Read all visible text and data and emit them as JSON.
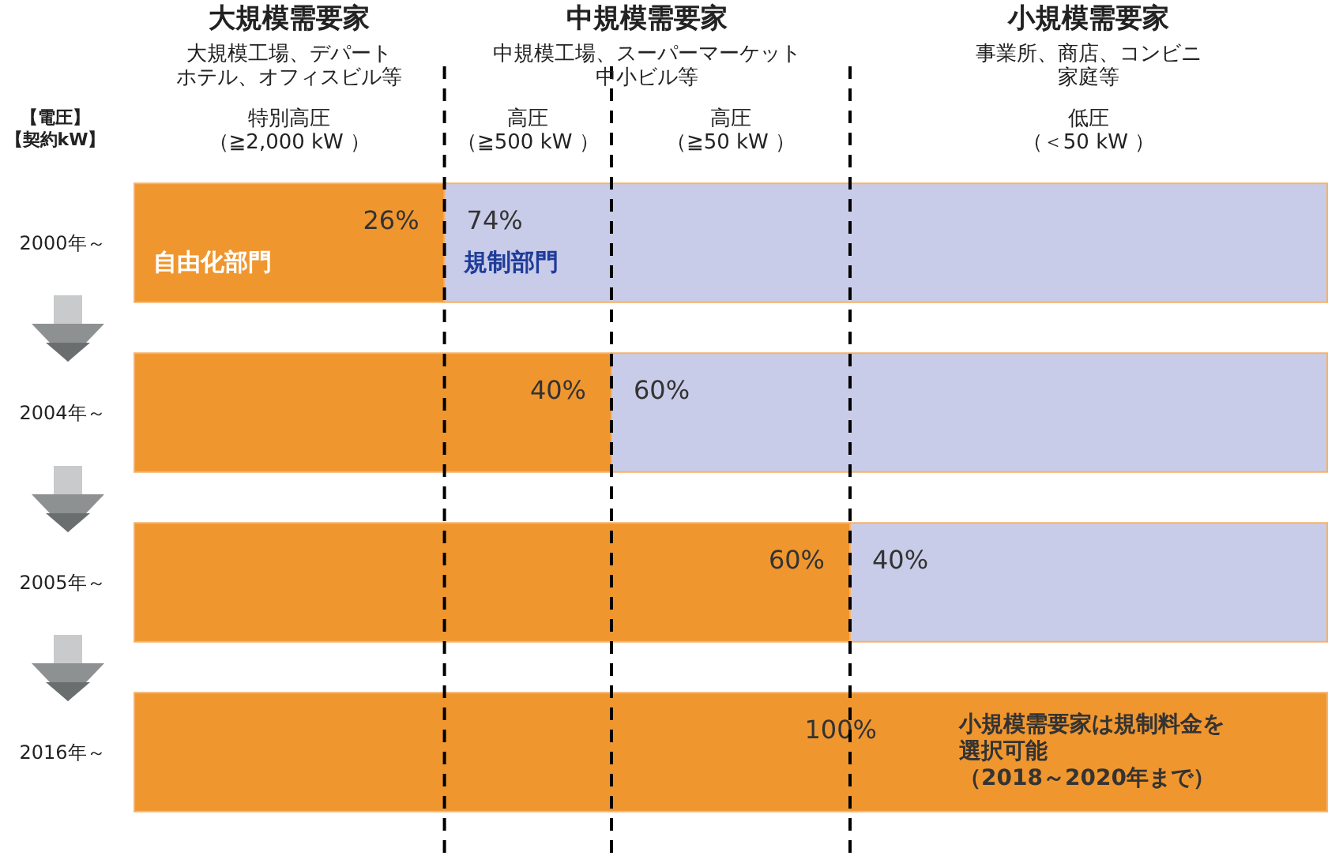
{
  "chart_data": {
    "type": "bar",
    "orientation": "horizontal",
    "stacked": true,
    "tick_labels": "y",
    "xlim": [
      0,
      100
    ],
    "categories": [
      "2000年～",
      "2004年～",
      "2005年～",
      "2016年～"
    ],
    "series": [
      {
        "name": "自由化部門",
        "color": "#f0962e",
        "values": [
          26,
          40,
          60,
          100
        ],
        "value_labels": [
          "26%",
          "40%",
          "60%",
          "100%"
        ]
      },
      {
        "name": "規制部門",
        "color": "#c9cce8",
        "values": [
          74,
          60,
          40,
          null
        ],
        "value_labels": [
          "74%",
          "60%",
          "40%",
          null
        ]
      }
    ],
    "ref_lines": [
      {
        "axis": "x",
        "value": 26,
        "color": "#000000",
        "line_style": "dashed"
      },
      {
        "axis": "x",
        "value": 40,
        "color": "#000000",
        "line_style": "dashed"
      },
      {
        "axis": "x",
        "value": 60,
        "color": "#000000",
        "line_style": "dashed"
      }
    ],
    "annotations": [
      "大規模需要家",
      "大規模工場、デパートホテル、オフィスビル等",
      "特別高圧（≧2,000 kW ）",
      "中規模需要家",
      "中規模工場、スーパーマーケット中小ビル等",
      "高圧（≧500 kW ）",
      "高圧（≧50 kW ）",
      "小規模需要家",
      "事業所、商店、コンビニ家庭等",
      "低圧（＜50 kW ）",
      "【電圧】【契約kW】",
      "小規模需要家は規制料金を選択可能（2018～2020年まで）"
    ]
  }
}
